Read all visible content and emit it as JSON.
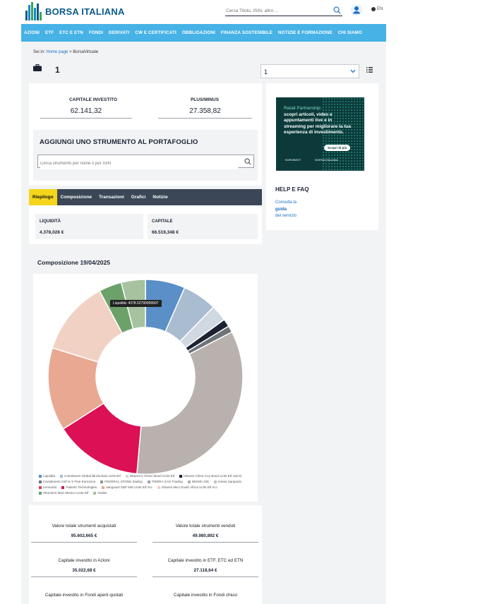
{
  "header": {
    "logo_text": "BORSA ITALIANA",
    "search_placeholder": "Cerca Titolo, ISIN, altro ...",
    "lang": "EN"
  },
  "nav": [
    "AZIONI",
    "ETF",
    "ETC E ETN",
    "FONDI",
    "DERIVATI",
    "CW E CERTIFICATI",
    "OBBLIGAZIONI",
    "FINANZA SOSTENIBILE",
    "NOTIZIE E FORMAZIONE",
    "CHI SIAMO"
  ],
  "breadcrumb": {
    "prefix": "Sei in:",
    "home": "Home page",
    "sep": ">",
    "current": "BorsaVirtuale"
  },
  "portfolio": {
    "count": "1",
    "select_value": "1"
  },
  "summary": {
    "capitale_label": "CAPITALE INVESTITO",
    "capitale_value": "62.141,32",
    "plus_label": "PLUS/MINUS",
    "plus_value": "27.358,82"
  },
  "add": {
    "title": "AGGIUNGI UNO STRUMENTO AL PORTAFOGLIO",
    "placeholder": "Cerca strumento per nome o per ISIN"
  },
  "tabs": [
    "Riepilogo",
    "Composizione",
    "Transazioni",
    "Grafici",
    "Notizie"
  ],
  "liquidity": {
    "liq_label": "LIQUIDITÀ",
    "liq_value": "4.378,028 €",
    "cap_label": "CAPITALE",
    "cap_value": "66.519,348 €"
  },
  "composition": {
    "title": "Composizione 19/04/2025",
    "tooltip": "Liquidità: 4378.02799999997"
  },
  "chart_data": {
    "type": "pie",
    "title": "Composizione 19/04/2025",
    "donut": true,
    "legend_placement": "bottom",
    "slices": [
      {
        "name": "Liquidità",
        "value": 6.6,
        "color": "#5a8fc7"
      },
      {
        "name": "Coinshares Global Blockchain Ucits Etf",
        "value": 5.7,
        "color": "#a9bcd0"
      },
      {
        "name": "Ishares € Green Bond Ucits Etf",
        "value": 2.7,
        "color": "#d0d8e2"
      },
      {
        "name": "Ishares China Cny Bond Ucits Etf Usd D",
        "value": 1.3,
        "color": "#1b2333"
      },
      {
        "name": "Investimenti Csif Ie S Ftse Eurozone",
        "value": 1.1,
        "color": "#6e7378"
      },
      {
        "name": "FEDERAL STONE trading",
        "value": 0.0,
        "color": "#8e9396"
      },
      {
        "name": "ITERRA GAS Trading",
        "value": 0.0,
        "color": "#a0a3a6"
      },
      {
        "name": "NIKKEI 225",
        "value": 34.0,
        "color": "#b8b1ae"
      },
      {
        "name": "Intesa Sanpaolo",
        "value": 0.0,
        "color": "#c5bfbc"
      },
      {
        "name": "Leonardo",
        "value": 0.0,
        "color": "#e03b63"
      },
      {
        "name": "Palantir Technologies",
        "value": 14.6,
        "color": "#db1055"
      },
      {
        "name": "Vanguard S&P 500 Ucits Etf Acc",
        "value": 13.8,
        "color": "#e8a891"
      },
      {
        "name": "Ishares Msci South Africa Ucits Etf Acc",
        "value": 12.4,
        "color": "#f2d1c5"
      },
      {
        "name": "Xtrackers Msci Mexico Ucits Etf",
        "value": 3.8,
        "color": "#6da16a"
      },
      {
        "name": "Nvidia",
        "value": 4.0,
        "color": "#a6c29f"
      }
    ]
  },
  "legend_items": [
    {
      "name": "Liquidità",
      "color": "#5a8fc7"
    },
    {
      "name": "Coinshares Global Blockchain Ucits Etf",
      "color": "#a9bcd0"
    },
    {
      "name": "Ishares € Green Bond Ucits Etf",
      "color": "#d0d8e2"
    },
    {
      "name": "Ishares China Cny Bond Ucits Etf Usd D",
      "color": "#1b2333"
    },
    {
      "name": "Investimenti Csif Ie S Ftse Eurozone",
      "color": "#6e7378"
    },
    {
      "name": "FEDERAL STONE trading",
      "color": "#8e9396"
    },
    {
      "name": "ITERRA GAS Trading",
      "color": "#a0a3a6"
    },
    {
      "name": "NIKKEI 225",
      "color": "#b8b1ae"
    },
    {
      "name": "Intesa Sanpaolo",
      "color": "#c5bfbc"
    },
    {
      "name": "Leonardo",
      "color": "#e03b63"
    },
    {
      "name": "Palantir Technologies",
      "color": "#db1055"
    },
    {
      "name": "Vanguard S&P 500 Ucits Etf Acc",
      "color": "#e8a891"
    },
    {
      "name": "Ishares Msci South Africa Ucits Etf Acc",
      "color": "#f2d1c5"
    },
    {
      "name": "Xtrackers Msci Mexico Ucits Etf",
      "color": "#6da16a"
    },
    {
      "name": "Nvidia",
      "color": "#a6c29f"
    }
  ],
  "totals": {
    "acquistati_label": "Valore totale strumenti acquistati",
    "acquistati_value": "95.602,665 €",
    "venduti_label": "Valore totale strumenti venduti",
    "venduti_value": "49.980,892 €",
    "azioni_label": "Capitale investito in Azioni",
    "azioni_value": "35.022,68 €",
    "etf_label": "Capitale investito in ETF, ETC ed ETN",
    "etf_value": "27.118,64 €",
    "fondi_aperti_label": "Capitale investito in Fondi aperti quotati",
    "fondi_chiusi_label": "Capitale investito in Fondi chiusi"
  },
  "ad": {
    "line1": "Retail Partnership:",
    "line2": "scopri articoli, video e appuntamenti live e in streaming per migliorare la tua esperienza di investimento.",
    "button": "Scopri di più",
    "foot1": "EURONEXT",
    "foot2": "BORSA ITALIANA"
  },
  "help": {
    "title": "HELP E FAQ",
    "link_pre": "Consulta la",
    "link_bold": "guida",
    "link_post": "del servizio"
  }
}
